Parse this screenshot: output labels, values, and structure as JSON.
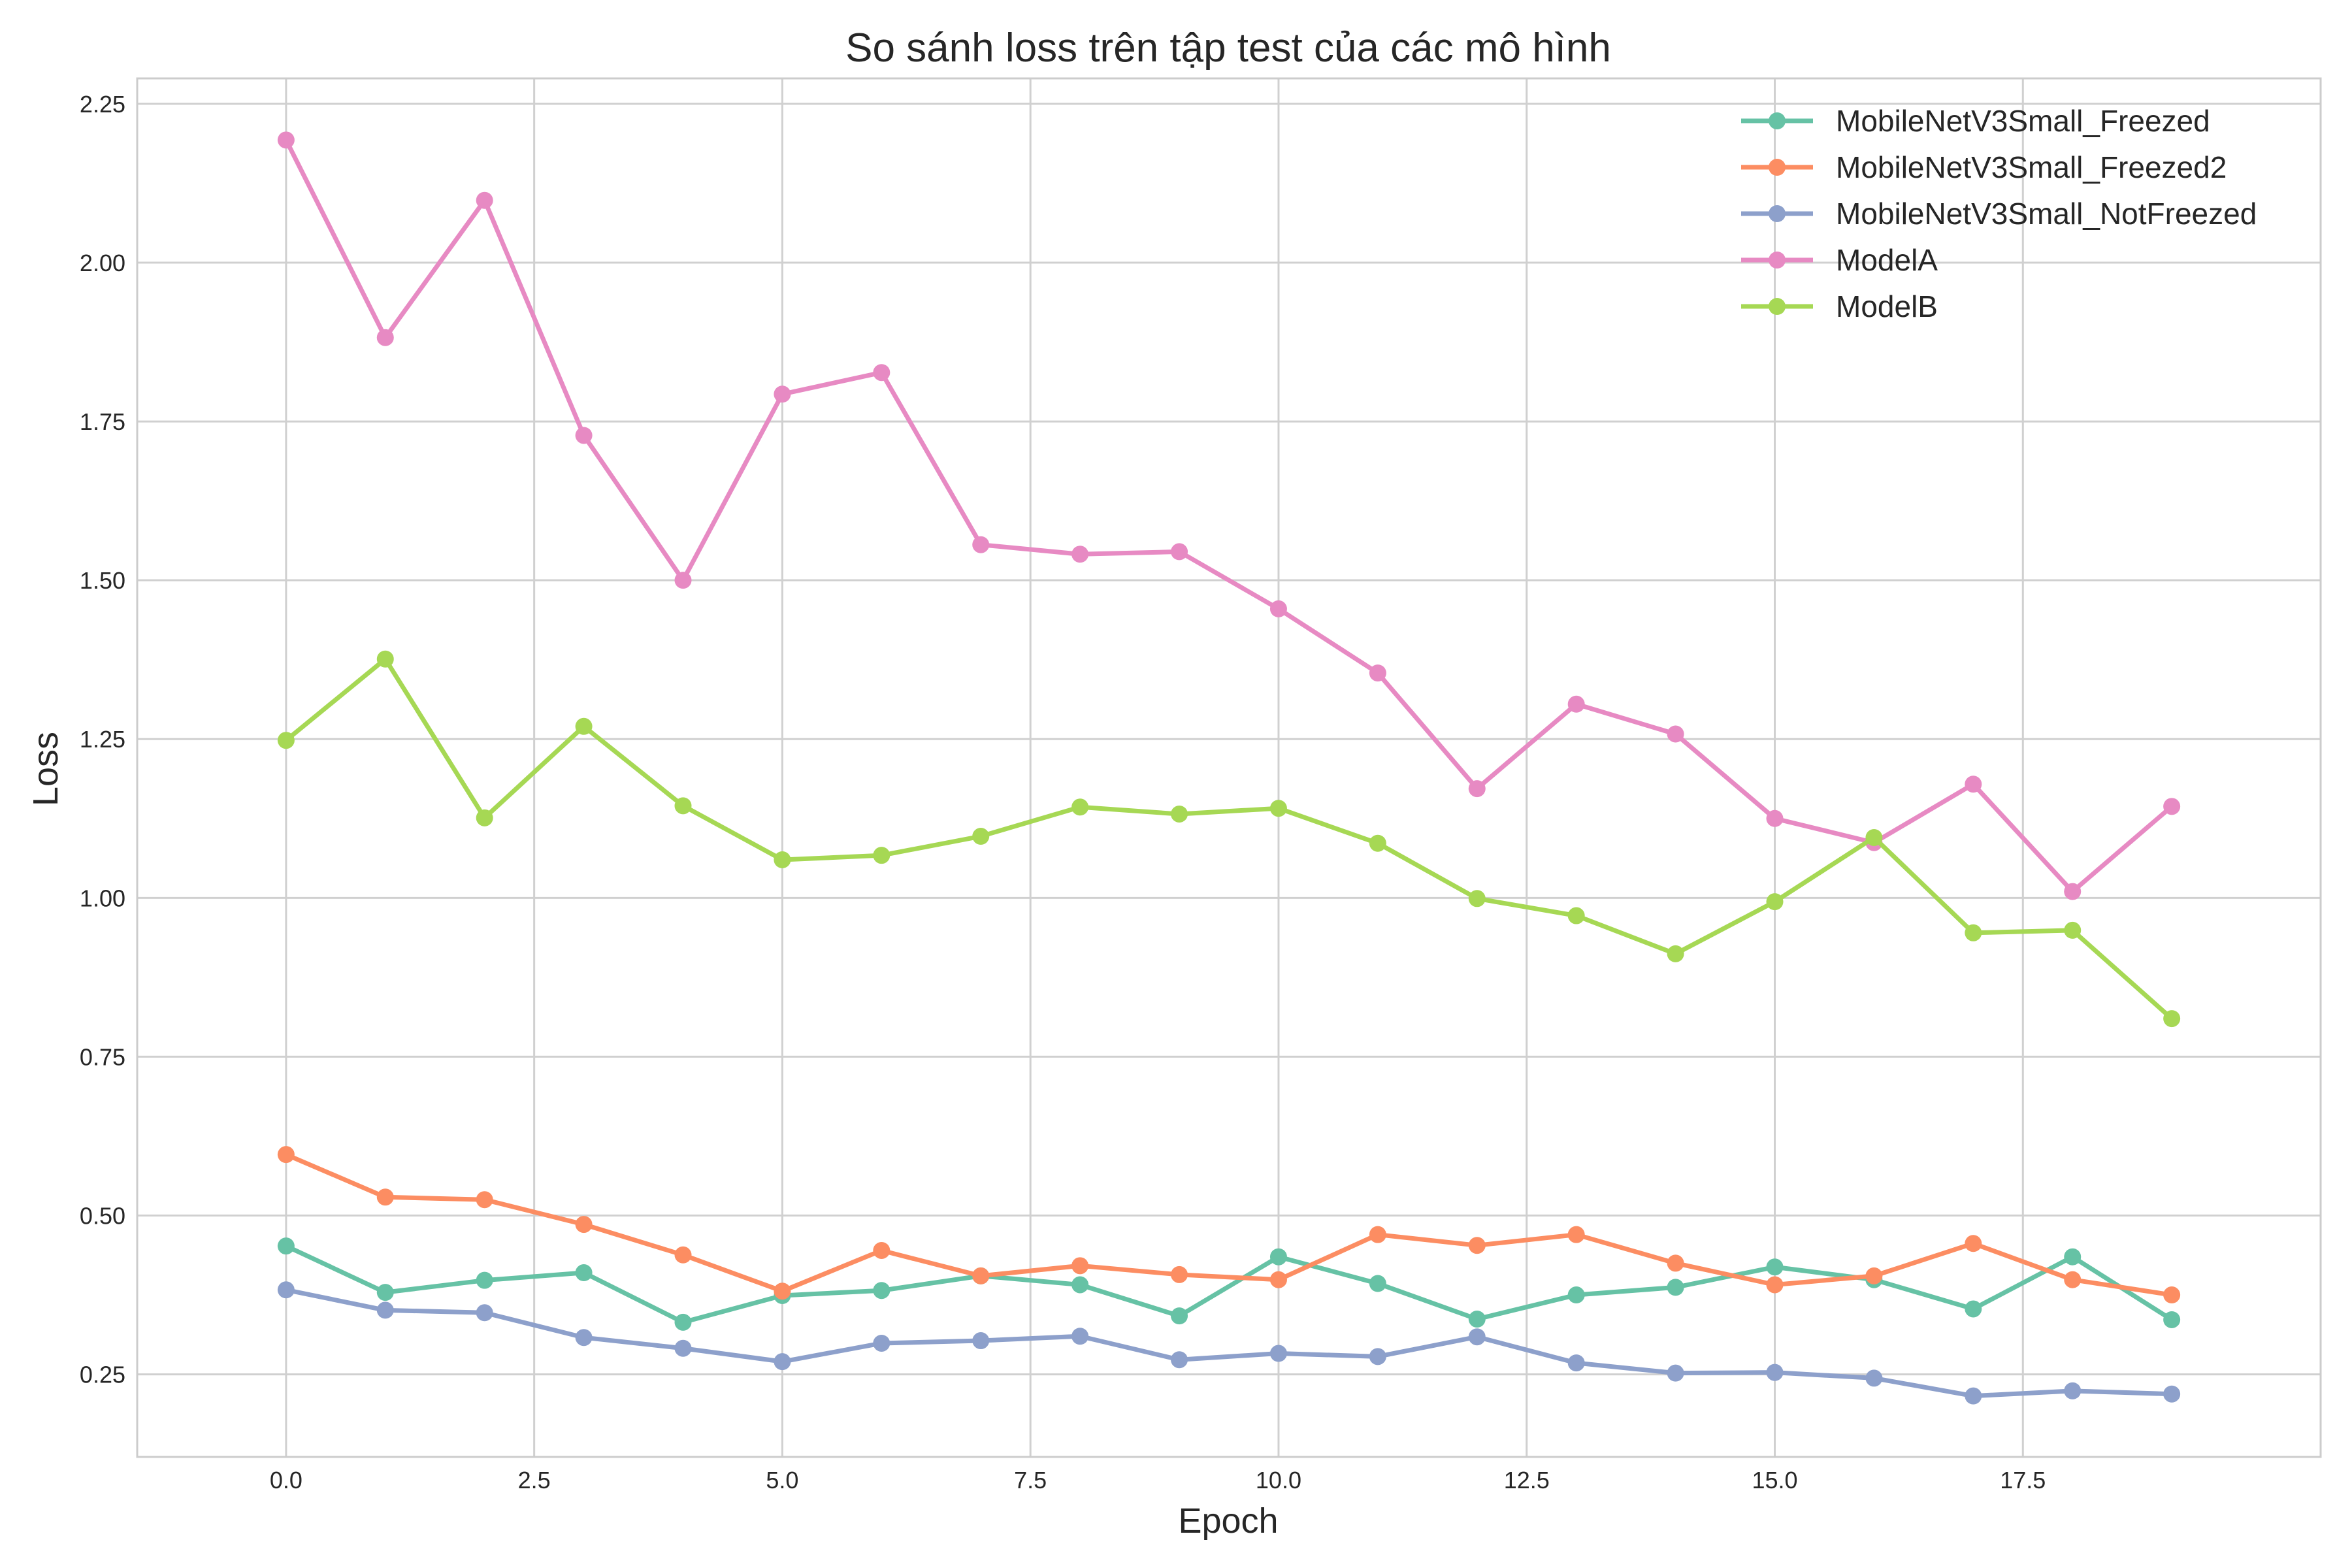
{
  "chart_data": {
    "type": "line",
    "title": "So sánh loss trên tập test của các mô hình",
    "xlabel": "Epoch",
    "ylabel": "Loss",
    "xlim": [
      -1.5,
      20.5
    ],
    "ylim": [
      0.12,
      2.29
    ],
    "xticks": [
      0.0,
      2.5,
      5.0,
      7.5,
      10.0,
      12.5,
      15.0,
      17.5
    ],
    "xtick_labels": [
      "0.0",
      "2.5",
      "5.0",
      "7.5",
      "10.0",
      "12.5",
      "15.0",
      "17.5"
    ],
    "yticks": [
      0.25,
      0.5,
      0.75,
      1.0,
      1.25,
      1.5,
      1.75,
      2.0,
      2.25
    ],
    "ytick_labels": [
      "0.25",
      "0.50",
      "0.75",
      "1.00",
      "1.25",
      "1.50",
      "1.75",
      "2.00",
      "2.25"
    ],
    "grid": true,
    "legend_position": "top-right",
    "x": [
      0,
      1,
      2,
      3,
      4,
      5,
      6,
      7,
      8,
      9,
      10,
      11,
      12,
      13,
      14,
      15,
      16,
      17,
      18,
      19
    ],
    "series": [
      {
        "name": "MobileNetV3Small_Freezed",
        "color": "#66c2a5",
        "values": [
          0.452,
          0.379,
          0.398,
          0.41,
          0.332,
          0.374,
          0.382,
          0.405,
          0.391,
          0.342,
          0.435,
          0.393,
          0.337,
          0.375,
          0.387,
          0.419,
          0.399,
          0.353,
          0.435,
          0.336
        ]
      },
      {
        "name": "MobileNetV3Small_Freezed2",
        "color": "#fc8d62",
        "values": [
          0.596,
          0.529,
          0.525,
          0.486,
          0.438,
          0.381,
          0.445,
          0.405,
          0.421,
          0.407,
          0.399,
          0.47,
          0.453,
          0.47,
          0.425,
          0.391,
          0.405,
          0.456,
          0.399,
          0.375
        ]
      },
      {
        "name": "MobileNetV3Small_NotFreezed",
        "color": "#8da0cb",
        "values": [
          0.383,
          0.351,
          0.347,
          0.308,
          0.291,
          0.27,
          0.299,
          0.303,
          0.31,
          0.273,
          0.283,
          0.278,
          0.309,
          0.268,
          0.252,
          0.253,
          0.244,
          0.216,
          0.224,
          0.219
        ]
      },
      {
        "name": "ModelA",
        "color": "#e78ac3",
        "values": [
          2.193,
          1.882,
          2.098,
          1.728,
          1.5,
          1.793,
          1.827,
          1.556,
          1.541,
          1.545,
          1.455,
          1.354,
          1.172,
          1.305,
          1.258,
          1.125,
          1.087,
          1.179,
          1.01,
          1.144
        ]
      },
      {
        "name": "ModelB",
        "color": "#a6d854",
        "values": [
          1.248,
          1.376,
          1.126,
          1.27,
          1.145,
          1.06,
          1.067,
          1.097,
          1.143,
          1.132,
          1.141,
          1.086,
          0.999,
          0.972,
          0.912,
          0.994,
          1.095,
          0.945,
          0.949,
          0.81
        ]
      }
    ]
  }
}
